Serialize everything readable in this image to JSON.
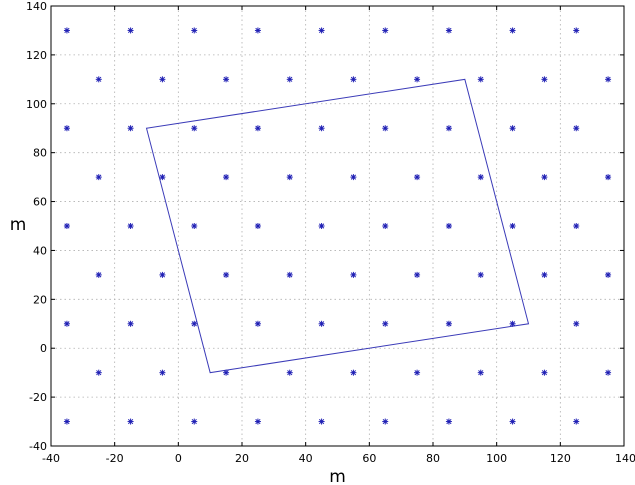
{
  "chart_data": {
    "type": "scatter",
    "title": "",
    "xlabel": "m",
    "ylabel": "m",
    "xlim": [
      -40,
      140
    ],
    "ylim": [
      -40,
      140
    ],
    "xticks": [
      -40,
      -20,
      0,
      20,
      40,
      60,
      80,
      100,
      120,
      140
    ],
    "yticks": [
      -40,
      -20,
      0,
      20,
      40,
      60,
      80,
      100,
      120,
      140
    ],
    "grid": true,
    "points_color": "#1f1fb4",
    "polygon_color": "#3b3bb8",
    "points": {
      "rows_y": [
        130,
        110,
        90,
        70,
        50,
        30,
        10,
        -10,
        -30
      ],
      "even_rows_x": [
        -35,
        -15,
        5,
        25,
        45,
        65,
        85,
        105,
        125
      ],
      "odd_rows_x": [
        -25,
        -5,
        15,
        35,
        55,
        75,
        95,
        115,
        135
      ]
    },
    "polygon": [
      [
        -10,
        90
      ],
      [
        90,
        110
      ],
      [
        110,
        10
      ],
      [
        10,
        -10
      ]
    ]
  }
}
